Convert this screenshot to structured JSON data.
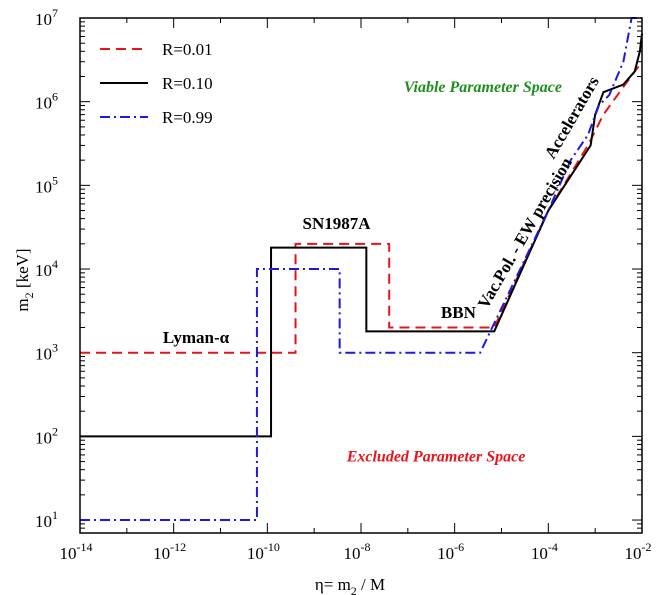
{
  "chart_data": {
    "type": "line",
    "xscale": "log",
    "yscale": "log",
    "xlim": [
      1e-14,
      0.01
    ],
    "ylim": [
      7,
      10000000.0
    ],
    "xlabel_main": "η= m",
    "xlabel_sub": "2",
    "xlabel_tail": " / M",
    "ylabel_main": "m",
    "ylabel_sub": "2",
    "ylabel_tail": "  [keV]",
    "xticks": [
      {
        "value": 1e-14,
        "base": "10",
        "exp": "-14"
      },
      {
        "value": 1e-12,
        "base": "10",
        "exp": "-12"
      },
      {
        "value": 1e-10,
        "base": "10",
        "exp": "-10"
      },
      {
        "value": 1e-08,
        "base": "10",
        "exp": "-8"
      },
      {
        "value": 1e-06,
        "base": "10",
        "exp": "-6"
      },
      {
        "value": 0.0001,
        "base": "10",
        "exp": "-4"
      },
      {
        "value": 0.01,
        "base": "10",
        "exp": "-2"
      }
    ],
    "yticks": [
      {
        "value": 10,
        "base": "10",
        "exp": "1"
      },
      {
        "value": 100,
        "base": "10",
        "exp": "2"
      },
      {
        "value": 1000,
        "base": "10",
        "exp": "3"
      },
      {
        "value": 10000,
        "base": "10",
        "exp": "4"
      },
      {
        "value": 100000,
        "base": "10",
        "exp": "5"
      },
      {
        "value": 1000000,
        "base": "10",
        "exp": "6"
      },
      {
        "value": 10000000,
        "base": "10",
        "exp": "7"
      }
    ],
    "legend_position": "top-left",
    "series": [
      {
        "name": "R=0.01",
        "color": "#e8141a",
        "dash": "dashed",
        "points": [
          [
            1e-14,
            1000
          ],
          [
            4e-10,
            1000
          ],
          [
            4e-10,
            20000
          ],
          [
            4e-08,
            20000
          ],
          [
            4e-08,
            2000
          ],
          [
            7e-06,
            2000
          ],
          [
            0.0001,
            50000
          ],
          [
            0.0007,
            300000
          ],
          [
            0.0015,
            700000
          ],
          [
            0.004,
            1500000
          ],
          [
            0.01,
            3000000
          ]
        ]
      },
      {
        "name": "R=0.10",
        "color": "#000000",
        "dash": "solid",
        "points": [
          [
            1e-14,
            100
          ],
          [
            1.2e-10,
            100
          ],
          [
            1.2e-10,
            18000
          ],
          [
            1.3e-08,
            18000
          ],
          [
            1.3e-08,
            1800
          ],
          [
            7e-06,
            1800
          ],
          [
            0.0001,
            50000
          ],
          [
            0.0008,
            300000
          ],
          [
            0.001,
            700000
          ],
          [
            0.0015,
            1300000
          ],
          [
            0.004,
            1600000
          ],
          [
            0.007,
            2300000
          ],
          [
            0.009,
            4000000
          ],
          [
            0.01,
            6500000
          ]
        ]
      },
      {
        "name": "R=0.99",
        "color": "#1a1ae6",
        "dash": "dashdot",
        "points": [
          [
            1e-14,
            10
          ],
          [
            6e-11,
            10
          ],
          [
            6e-11,
            10000
          ],
          [
            3.5e-09,
            10000
          ],
          [
            3.5e-09,
            1000
          ],
          [
            3.5e-06,
            1000
          ],
          [
            0.0001,
            50000
          ],
          [
            0.0003,
            200000
          ],
          [
            0.0007,
            400000
          ],
          [
            0.0012,
            900000
          ],
          [
            0.002,
            1200000
          ],
          [
            0.004,
            3000000
          ],
          [
            0.006,
            10000000
          ],
          [
            0.01,
            10000000
          ]
        ]
      }
    ],
    "annotations": [
      {
        "text": "Viable Parameter Space",
        "x": 4e-06,
        "y": 1300000,
        "color": "#1f8f1f",
        "style": "region",
        "rotate": 0
      },
      {
        "text": "Excluded Parameter Space",
        "x": 4e-07,
        "y": 50,
        "color": "#e8141a",
        "style": "region",
        "rotate": 0
      },
      {
        "text": "Lyman-α",
        "x": 3e-12,
        "y": 1300,
        "color": "#000000",
        "style": "annot",
        "rotate": 0
      },
      {
        "text": "SN1987A",
        "x": 3e-09,
        "y": 30000,
        "color": "#000000",
        "style": "annot",
        "rotate": 0
      },
      {
        "text": "BBN",
        "x": 1.2e-06,
        "y": 2600,
        "color": "#000000",
        "style": "annot",
        "rotate": 0
      },
      {
        "text": "Accelerators",
        "x": 0.0004,
        "y": 600000,
        "color": "#000000",
        "style": "annot",
        "rotate": -60
      },
      {
        "text": "Vac.Pol. - EW precision",
        "x": 4e-05,
        "y": 25000,
        "color": "#000000",
        "style": "annot",
        "rotate": -60
      }
    ]
  }
}
